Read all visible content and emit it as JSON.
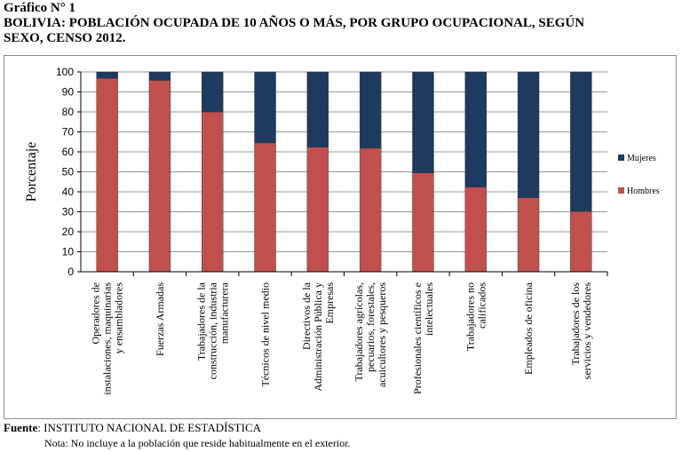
{
  "header": {
    "figure_label": "Gráfico N° 1",
    "title_line1": "BOLIVIA: POBLACIÓN OCUPADA DE 10 AÑOS O MÁS, POR GRUPO OCUPACIONAL, SEGÚN",
    "title_line2": "SEXO, CENSO 2012."
  },
  "footer": {
    "source_label": "Fuente",
    "source_text": ": INSTITUTO NACIONAL DE ESTADÍSTICA",
    "note": "Nota: No incluye a la población que reside habitualmente en el exterior."
  },
  "colors": {
    "hombres": "#c0504d",
    "mujeres": "#1f3a5f",
    "grid": "#999999",
    "axis": "#000000"
  },
  "chart_data": {
    "type": "bar",
    "stacked": true,
    "categories": [
      [
        "Operadores de",
        "instalaciones, maquinarias",
        "y ensambladores"
      ],
      [
        "Fuerzas Armadas"
      ],
      [
        "Trabajadores de la",
        "construcción, industria",
        "manufacturera"
      ],
      [
        "Técnicos de nivel medio"
      ],
      [
        "Directivos de la",
        "Administración Pública y",
        "Empresas"
      ],
      [
        "Trabajadores agrícolas,",
        "pecuarios, forestales,",
        "acuicultores y pesqueros"
      ],
      [
        "Profesionales científicos e",
        "intelectuales"
      ],
      [
        "Trabajadores no",
        "calificados"
      ],
      [
        "Empleados de oficina"
      ],
      [
        "Trabajadores de los",
        "servicios y vendedores"
      ]
    ],
    "series": [
      {
        "name": "Hombres",
        "values": [
          96.8,
          95.8,
          80.0,
          64.5,
          62.3,
          61.8,
          49.5,
          42.3,
          37.0,
          30.2
        ]
      },
      {
        "name": "Mujeres",
        "values": [
          3.2,
          4.2,
          20.0,
          35.5,
          37.7,
          38.2,
          50.5,
          57.7,
          63.0,
          69.8
        ]
      }
    ],
    "ylabel": "Porcentaje",
    "ylim": [
      0,
      100
    ],
    "yticks": [
      "0",
      "10",
      "20",
      "30",
      "40",
      "50",
      "60",
      "70",
      "80",
      "90",
      "100"
    ],
    "grid": true,
    "legend": {
      "position": "right",
      "items": [
        "Mujeres",
        "Hombres"
      ]
    }
  }
}
